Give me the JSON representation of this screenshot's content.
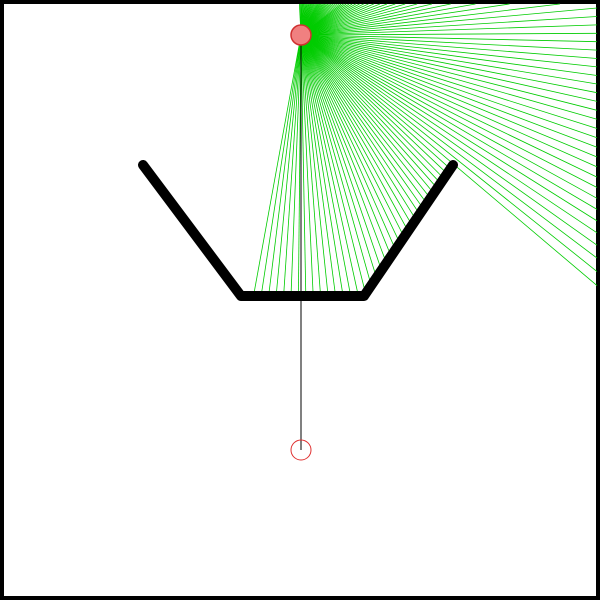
{
  "scene": {
    "type": "2d-navigation-environment",
    "colors": {
      "background": "#ffffff",
      "border": "#000000",
      "wall": "#000000",
      "lidar_ray": "#00cc00",
      "agent_fill": "#f08080",
      "agent_stroke": "#d03030",
      "goal_stroke": "#e03030",
      "heading_line": "#000000"
    },
    "agent": {
      "label": "agent"
    },
    "goal": {
      "label": "goal"
    },
    "obstacle": {
      "label": "u-shaped-wall"
    },
    "sensor": {
      "label": "lidar-fan",
      "ray_count": 120
    }
  }
}
